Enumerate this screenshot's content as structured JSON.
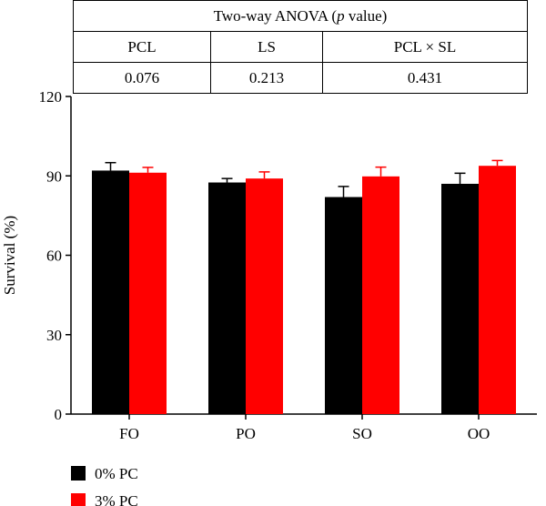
{
  "anova_table": {
    "title": "Two-way ANOVA (",
    "title_italic": "p",
    "title_suffix": " value)",
    "headers": [
      "PCL",
      "LS",
      "PCL × SL"
    ],
    "values": [
      "0.076",
      "0.213",
      "0.431"
    ]
  },
  "chart_data": {
    "type": "bar",
    "categories": [
      "FO",
      "PO",
      "SO",
      "OO"
    ],
    "series": [
      {
        "name": "0% PC",
        "color": "#000000",
        "values": [
          92,
          87.5,
          82,
          87
        ],
        "errors": [
          3,
          1.5,
          4,
          4
        ]
      },
      {
        "name": "3% PC",
        "color": "#ff0000",
        "values": [
          91.2,
          89,
          89.8,
          93.8
        ],
        "errors": [
          2,
          2.5,
          3.5,
          2
        ]
      }
    ],
    "title": "",
    "xlabel": "",
    "ylabel": "Survival (%)",
    "ylim": [
      0,
      120
    ],
    "yticks": [
      0,
      30,
      60,
      90,
      120
    ],
    "legend_position": "bottom-left",
    "grid": false
  }
}
